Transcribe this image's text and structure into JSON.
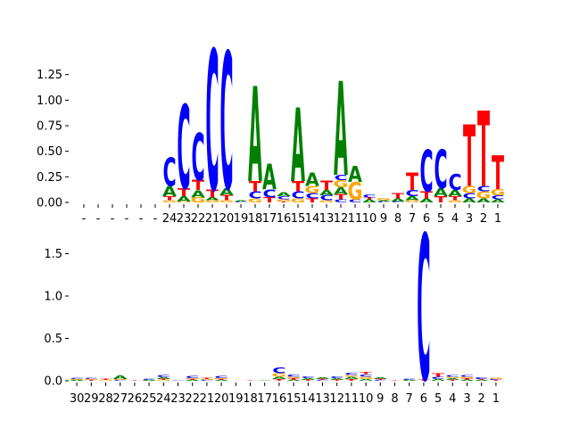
{
  "chart_data": [
    {
      "type": "sequence-logo",
      "title": "",
      "xlabel": "",
      "ylabel": "",
      "ylim": [
        0,
        1.5
      ],
      "yticks": [
        "0.00",
        "0.25",
        "0.50",
        "0.75",
        "1.00",
        "1.25"
      ],
      "ytick_values": [
        0,
        0.25,
        0.5,
        0.75,
        1.0,
        1.25
      ],
      "colors": {
        "A": "#008000",
        "C": "#0000ff",
        "G": "#ffa500",
        "T": "#ff0000"
      },
      "categories": [
        "-",
        "-",
        "-",
        "-",
        "-",
        "-",
        "24",
        "23",
        "22",
        "21",
        "20",
        "19",
        "18",
        "17",
        "16",
        "15",
        "14",
        "13",
        "12",
        "11",
        "10",
        "9",
        "8",
        "7",
        "6",
        "5",
        "4",
        "3",
        "2",
        "1"
      ],
      "positions": [
        [],
        [],
        [],
        [],
        [],
        [],
        [
          [
            "G",
            0.02
          ],
          [
            "T",
            0.04
          ],
          [
            "A",
            0.1
          ],
          [
            "C",
            0.28
          ]
        ],
        [
          [
            "G",
            0.01
          ],
          [
            "A",
            0.05
          ],
          [
            "T",
            0.08
          ],
          [
            "C",
            0.82
          ]
        ],
        [
          [
            "G",
            0.05
          ],
          [
            "A",
            0.07
          ],
          [
            "T",
            0.1
          ],
          [
            "C",
            0.46
          ]
        ],
        [
          [
            "G",
            0.02
          ],
          [
            "A",
            0.03
          ],
          [
            "T",
            0.08
          ],
          [
            "C",
            1.37
          ]
        ],
        [
          [
            "G",
            0.02
          ],
          [
            "T",
            0.05
          ],
          [
            "A",
            0.07
          ],
          [
            "C",
            1.34
          ]
        ],
        [
          [
            "C",
            0.01
          ],
          [
            "A",
            0.01
          ]
        ],
        [
          [
            "G",
            0.04
          ],
          [
            "C",
            0.07
          ],
          [
            "T",
            0.1
          ],
          [
            "A",
            0.93
          ]
        ],
        [
          [
            "T",
            0.05
          ],
          [
            "C",
            0.08
          ],
          [
            "A",
            0.25
          ]
        ],
        [
          [
            "T",
            0.01
          ],
          [
            "G",
            0.02
          ],
          [
            "C",
            0.03
          ],
          [
            "A",
            0.04
          ]
        ],
        [
          [
            "G",
            0.04
          ],
          [
            "C",
            0.07
          ],
          [
            "T",
            0.1
          ],
          [
            "A",
            0.72
          ]
        ],
        [
          [
            "T",
            0.04
          ],
          [
            "C",
            0.05
          ],
          [
            "G",
            0.07
          ],
          [
            "A",
            0.13
          ]
        ],
        [
          [
            "G",
            0.02
          ],
          [
            "C",
            0.05
          ],
          [
            "A",
            0.05
          ],
          [
            "T",
            0.09
          ]
        ],
        [
          [
            "C",
            0.03
          ],
          [
            "T",
            0.05
          ],
          [
            "A",
            0.07
          ],
          [
            "G",
            0.07
          ],
          [
            "C",
            0.05
          ],
          [
            "A",
            0.92
          ]
        ],
        [
          [
            "C",
            0.03
          ],
          [
            "G",
            0.17
          ],
          [
            "A",
            0.16
          ]
        ],
        [
          [
            "A",
            0.03
          ],
          [
            "T",
            0.02
          ],
          [
            "C",
            0.03
          ]
        ],
        [
          [
            "C",
            0.01
          ],
          [
            "A",
            0.01
          ],
          [
            "G",
            0.02
          ]
        ],
        [
          [
            "C",
            0.01
          ],
          [
            "A",
            0.03
          ],
          [
            "T",
            0.05
          ]
        ],
        [
          [
            "G",
            0.02
          ],
          [
            "A",
            0.04
          ],
          [
            "C",
            0.06
          ],
          [
            "T",
            0.17
          ]
        ],
        [
          [
            "A",
            0.04
          ],
          [
            "T",
            0.07
          ],
          [
            "C",
            0.41
          ]
        ],
        [
          [
            "T",
            0.06
          ],
          [
            "A",
            0.08
          ],
          [
            "C",
            0.38
          ]
        ],
        [
          [
            "G",
            0.02
          ],
          [
            "T",
            0.04
          ],
          [
            "A",
            0.06
          ],
          [
            "C",
            0.16
          ]
        ],
        [
          [
            "A",
            0.04
          ],
          [
            "C",
            0.05
          ],
          [
            "G",
            0.07
          ],
          [
            "T",
            0.6
          ]
        ],
        [
          [
            "A",
            0.04
          ],
          [
            "G",
            0.07
          ],
          [
            "C",
            0.05
          ],
          [
            "T",
            0.74
          ]
        ],
        [
          [
            "A",
            0.03
          ],
          [
            "C",
            0.04
          ],
          [
            "G",
            0.06
          ],
          [
            "T",
            0.33
          ]
        ]
      ]
    },
    {
      "type": "sequence-logo",
      "title": "",
      "xlabel": "",
      "ylabel": "",
      "ylim": [
        0,
        1.8
      ],
      "yticks": [
        "0.0",
        "0.5",
        "1.0",
        "1.5"
      ],
      "ytick_values": [
        0,
        0.5,
        1.0,
        1.5
      ],
      "colors": {
        "A": "#008000",
        "C": "#0000ff",
        "G": "#ffa500",
        "T": "#ff0000"
      },
      "categories": [
        "30",
        "29",
        "28",
        "27",
        "26",
        "25",
        "24",
        "23",
        "22",
        "21",
        "20",
        "19",
        "18",
        "17",
        "16",
        "15",
        "14",
        "13",
        "12",
        "11",
        "10",
        "9",
        "8",
        "7",
        "6",
        "5",
        "4",
        "3",
        "2",
        "1"
      ],
      "positions": [
        [
          [
            "A",
            0.01
          ],
          [
            "G",
            0.01
          ],
          [
            "C",
            0.01
          ]
        ],
        [
          [
            "T",
            0.01
          ],
          [
            "G",
            0.01
          ],
          [
            "C",
            0.01
          ]
        ],
        [
          [
            "G",
            0.01
          ],
          [
            "T",
            0.01
          ]
        ],
        [
          [
            "C",
            0.01
          ],
          [
            "G",
            0.01
          ],
          [
            "A",
            0.04
          ]
        ],
        [
          [
            "T",
            0.005
          ]
        ],
        [
          [
            "A",
            0.01
          ],
          [
            "C",
            0.01
          ]
        ],
        [
          [
            "G",
            0.01
          ],
          [
            "T",
            0.01
          ],
          [
            "A",
            0.02
          ],
          [
            "C",
            0.03
          ]
        ],
        [
          [
            "C",
            0.005
          ]
        ],
        [
          [
            "A",
            0.01
          ],
          [
            "T",
            0.01
          ],
          [
            "G",
            0.01
          ],
          [
            "C",
            0.03
          ]
        ],
        [
          [
            "C",
            0.01
          ],
          [
            "G",
            0.01
          ],
          [
            "T",
            0.01
          ]
        ],
        [
          [
            "A",
            0.01
          ],
          [
            "T",
            0.01
          ],
          [
            "G",
            0.01
          ],
          [
            "C",
            0.03
          ]
        ],
        [],
        [
          [
            "T",
            0.005
          ]
        ],
        [
          [
            "A",
            0.005
          ]
        ],
        [
          [
            "T",
            0.02
          ],
          [
            "A",
            0.03
          ],
          [
            "G",
            0.04
          ],
          [
            "C",
            0.07
          ]
        ],
        [
          [
            "A",
            0.01
          ],
          [
            "T",
            0.02
          ],
          [
            "G",
            0.02
          ],
          [
            "C",
            0.03
          ]
        ],
        [
          [
            "T",
            0.01
          ],
          [
            "A",
            0.02
          ],
          [
            "C",
            0.02
          ]
        ],
        [
          [
            "C",
            0.01
          ],
          [
            "T",
            0.01
          ],
          [
            "A",
            0.02
          ]
        ],
        [
          [
            "T",
            0.01
          ],
          [
            "A",
            0.02
          ],
          [
            "C",
            0.02
          ]
        ],
        [
          [
            "T",
            0.02
          ],
          [
            "A",
            0.03
          ],
          [
            "G",
            0.02
          ],
          [
            "C",
            0.03
          ]
        ],
        [
          [
            "A",
            0.02
          ],
          [
            "G",
            0.03
          ],
          [
            "C",
            0.03
          ],
          [
            "T",
            0.03
          ]
        ],
        [
          [
            "C",
            0.01
          ],
          [
            "T",
            0.01
          ],
          [
            "A",
            0.02
          ]
        ],
        [
          [
            "T",
            0.005
          ]
        ],
        [
          [
            "A",
            0.01
          ],
          [
            "C",
            0.01
          ]
        ],
        [
          [
            "T",
            0.02
          ],
          [
            "C",
            1.72
          ]
        ],
        [
          [
            "A",
            0.02
          ],
          [
            "C",
            0.03
          ],
          [
            "T",
            0.04
          ]
        ],
        [
          [
            "T",
            0.01
          ],
          [
            "A",
            0.02
          ],
          [
            "G",
            0.02
          ],
          [
            "C",
            0.02
          ]
        ],
        [
          [
            "A",
            0.01
          ],
          [
            "T",
            0.02
          ],
          [
            "G",
            0.02
          ],
          [
            "C",
            0.02
          ]
        ],
        [
          [
            "A",
            0.01
          ],
          [
            "T",
            0.01
          ],
          [
            "C",
            0.02
          ]
        ],
        [
          [
            "T",
            0.01
          ],
          [
            "C",
            0.01
          ],
          [
            "G",
            0.01
          ]
        ]
      ]
    }
  ]
}
